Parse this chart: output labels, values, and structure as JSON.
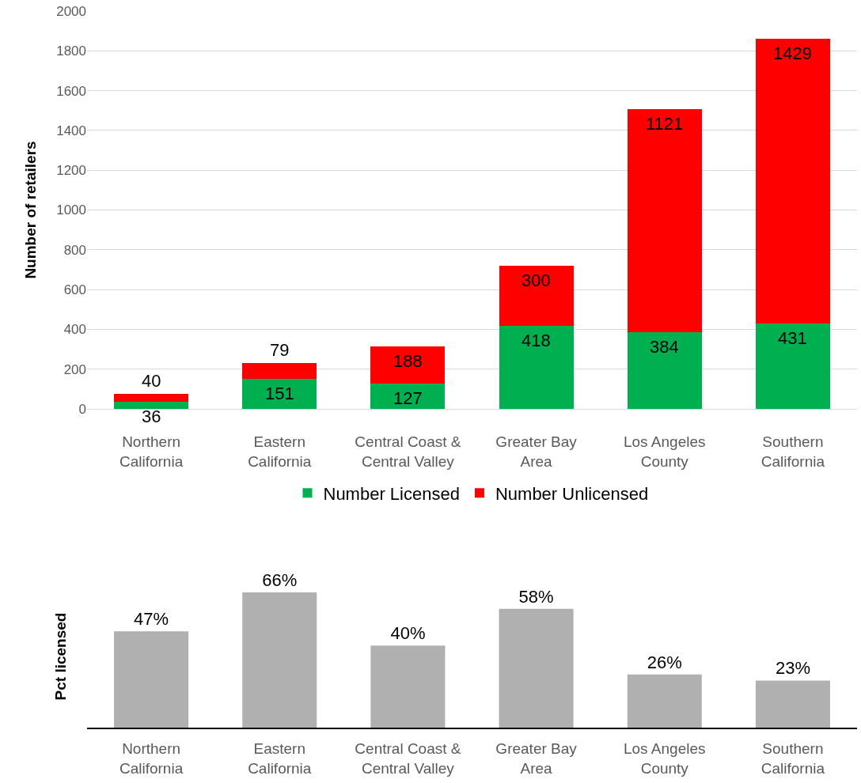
{
  "chart_data": [
    {
      "type": "bar",
      "stacked": true,
      "ylabel": "Number of retailers",
      "categories": [
        "Northern California",
        "Eastern California",
        "Central Coast & Central Valley",
        "Greater Bay Area",
        "Los Angeles County",
        "Southern California"
      ],
      "series": [
        {
          "name": "Number Licensed",
          "color": "#00b050",
          "values": [
            36,
            151,
            127,
            418,
            384,
            431
          ]
        },
        {
          "name": "Number Unlicensed",
          "color": "#ff0000",
          "values": [
            40,
            79,
            188,
            300,
            1121,
            1429
          ]
        }
      ],
      "data_labels": true,
      "ylim": [
        0,
        2000
      ],
      "yticks": [
        0,
        200,
        400,
        600,
        800,
        1000,
        1200,
        1400,
        1600,
        1800,
        2000
      ],
      "grid": "y",
      "legend": "bottom"
    },
    {
      "type": "bar",
      "ylabel": "Pct licensed",
      "categories": [
        "Northern California",
        "Eastern California",
        "Central Coast & Central Valley",
        "Greater Bay Area",
        "Los Angeles County",
        "Southern California"
      ],
      "values": [
        47,
        66,
        40,
        58,
        26,
        23
      ],
      "color": "#b0b0b0",
      "value_labels": [
        "47%",
        "66%",
        "40%",
        "58%",
        "26%",
        "23%"
      ],
      "tick_labels": "x"
    }
  ]
}
